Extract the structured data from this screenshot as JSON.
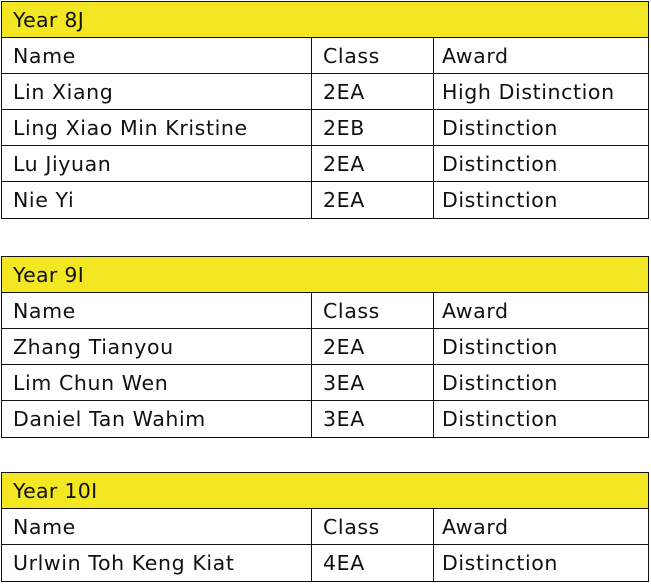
{
  "colors": {
    "header_fill": "#f2e722",
    "border": "#111111",
    "text": "#111111"
  },
  "columns": {
    "name": "Name",
    "class": "Class",
    "award": "Award"
  },
  "tables": [
    {
      "title": "Year 8J",
      "rows": [
        {
          "name": "Lin Xiang",
          "class": "2EA",
          "award": "High Distinction"
        },
        {
          "name": "Ling Xiao Min Kristine",
          "class": "2EB",
          "award": "Distinction"
        },
        {
          "name": "Lu Jiyuan",
          "class": "2EA",
          "award": "Distinction"
        },
        {
          "name": "Nie Yi",
          "class": "2EA",
          "award": "Distinction"
        }
      ]
    },
    {
      "title": "Year 9I",
      "rows": [
        {
          "name": "Zhang Tianyou",
          "class": "2EA",
          "award": "Distinction"
        },
        {
          "name": "Lim Chun Wen",
          "class": "3EA",
          "award": "Distinction"
        },
        {
          "name": "Daniel Tan Wahim",
          "class": "3EA",
          "award": "Distinction"
        }
      ]
    },
    {
      "title": "Year 10I",
      "rows": [
        {
          "name": "Urlwin Toh Keng Kiat",
          "class": "4EA",
          "award": "Distinction"
        }
      ]
    }
  ]
}
